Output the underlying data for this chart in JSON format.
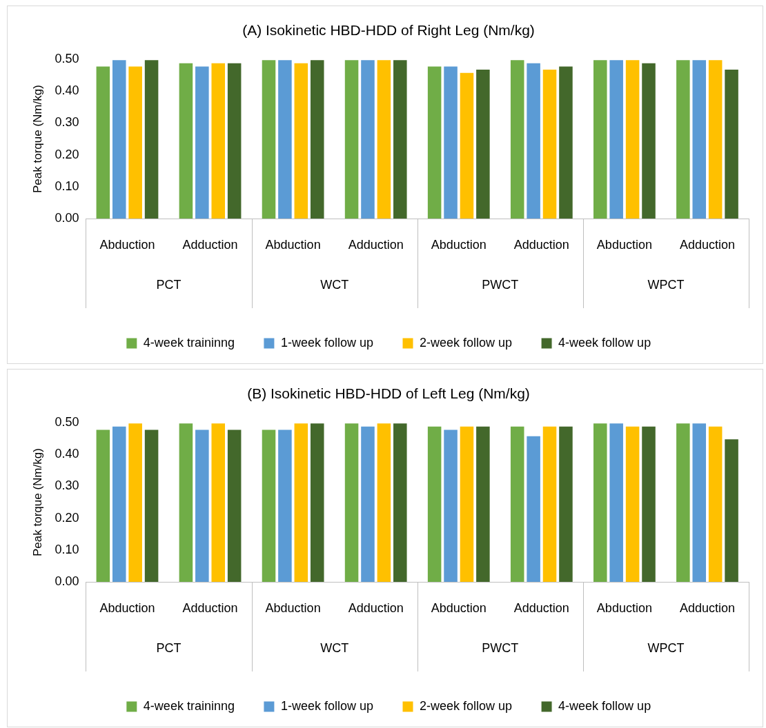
{
  "chart_data": [
    {
      "type": "bar",
      "title": "(A) Isokinetic HBD-HDD of Right Leg (Nm/kg)",
      "ylabel": "Peak torque (Nm/kg)",
      "categories": [
        "Abduction",
        "Adduction",
        "Abduction",
        "Adduction",
        "Abduction",
        "Adduction",
        "Abduction",
        "Adduction"
      ],
      "annotations": [
        "PCT",
        "WCT",
        "PWCT",
        "WPCT"
      ],
      "series": [
        {
          "name": "4-week traininng",
          "color": "#70ad47",
          "values": [
            0.48,
            0.49,
            0.5,
            0.5,
            0.48,
            0.5,
            0.5,
            0.5
          ]
        },
        {
          "name": "1-week follow up",
          "color": "#5b9bd5",
          "values": [
            0.5,
            0.48,
            0.5,
            0.5,
            0.48,
            0.49,
            0.5,
            0.5
          ]
        },
        {
          "name": "2-week follow up",
          "color": "#ffc000",
          "values": [
            0.48,
            0.49,
            0.49,
            0.5,
            0.46,
            0.47,
            0.5,
            0.5
          ]
        },
        {
          "name": "4-week follow up",
          "color": "#43682b",
          "values": [
            0.5,
            0.49,
            0.5,
            0.5,
            0.47,
            0.48,
            0.49,
            0.47
          ]
        }
      ],
      "ylim": [
        0,
        0.5
      ],
      "yticks": [
        {
          "value": 0,
          "label": "0.00"
        },
        {
          "value": 0.1,
          "label": "0.10"
        },
        {
          "value": 0.2,
          "label": "0.20"
        },
        {
          "value": 0.3,
          "label": "0.30"
        },
        {
          "value": 0.4,
          "label": "0.40"
        },
        {
          "value": 0.5,
          "label": "0.50"
        }
      ],
      "grid": false,
      "legend": "bottom"
    },
    {
      "type": "bar",
      "title": "(B) Isokinetic HBD-HDD of Left Leg (Nm/kg)",
      "ylabel": "Peak torque (Nm/kg)",
      "categories": [
        "Abduction",
        "Adduction",
        "Abduction",
        "Adduction",
        "Abduction",
        "Adduction",
        "Abduction",
        "Adduction"
      ],
      "annotations": [
        "PCT",
        "WCT",
        "PWCT",
        "WPCT"
      ],
      "series": [
        {
          "name": "4-week traininng",
          "color": "#70ad47",
          "values": [
            0.48,
            0.5,
            0.48,
            0.5,
            0.49,
            0.49,
            0.5,
            0.5
          ]
        },
        {
          "name": "1-week follow up",
          "color": "#5b9bd5",
          "values": [
            0.49,
            0.48,
            0.48,
            0.49,
            0.48,
            0.46,
            0.5,
            0.5
          ]
        },
        {
          "name": "2-week follow up",
          "color": "#ffc000",
          "values": [
            0.5,
            0.5,
            0.5,
            0.5,
            0.49,
            0.49,
            0.49,
            0.49
          ]
        },
        {
          "name": "4-week follow up",
          "color": "#43682b",
          "values": [
            0.48,
            0.48,
            0.5,
            0.5,
            0.49,
            0.49,
            0.49,
            0.45
          ]
        }
      ],
      "ylim": [
        0,
        0.5
      ],
      "yticks": [
        {
          "value": 0,
          "label": "0.00"
        },
        {
          "value": 0.1,
          "label": "0.10"
        },
        {
          "value": 0.2,
          "label": "0.20"
        },
        {
          "value": 0.3,
          "label": "0.30"
        },
        {
          "value": 0.4,
          "label": "0.40"
        },
        {
          "value": 0.5,
          "label": "0.50"
        }
      ],
      "grid": false,
      "legend": "bottom"
    }
  ]
}
